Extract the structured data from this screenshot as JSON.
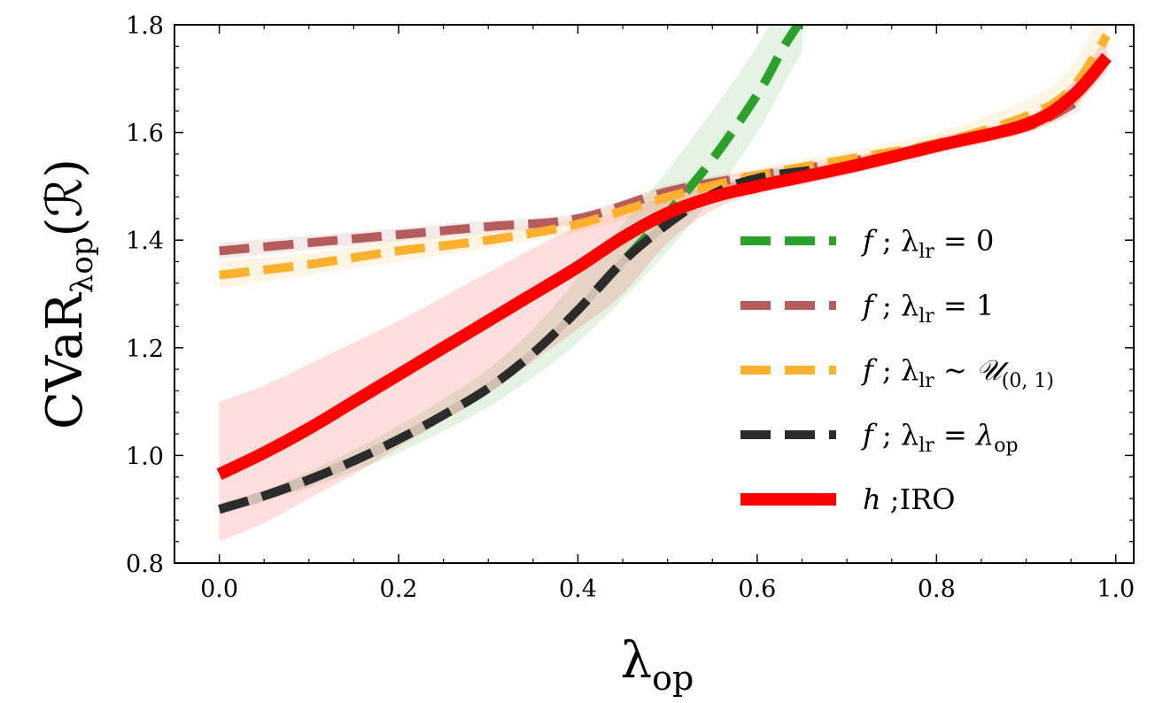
{
  "chart_data": {
    "type": "line",
    "title": "",
    "xlabel": "λop",
    "ylabel": "CVaRλop(ℛ)",
    "xlim": [
      -0.05,
      1.02
    ],
    "ylim": [
      0.8,
      1.8
    ],
    "xticks": [
      0.0,
      0.2,
      0.4,
      0.6,
      0.8,
      1.0
    ],
    "xtick_labels": [
      "0.0",
      "0.2",
      "0.4",
      "0.6",
      "0.8",
      "1.0"
    ],
    "yticks": [
      0.8,
      1.0,
      1.2,
      1.4,
      1.6,
      1.8
    ],
    "ytick_labels": [
      "0.8",
      "1.0",
      "1.2",
      "1.4",
      "1.6",
      "1.8"
    ],
    "grid": false,
    "legend_position": "center-right",
    "series": [
      {
        "name": "f ; λlr = 0",
        "legend": {
          "main": "f",
          "sep": " ; ",
          "sym": "λ",
          "sub": "lr",
          "rel": " = 0",
          "extra": ""
        },
        "color": "#2ca02c",
        "style": "dashed",
        "width": 10,
        "x": [
          0.0,
          0.05,
          0.1,
          0.15,
          0.2,
          0.25,
          0.3,
          0.35,
          0.4,
          0.45,
          0.5,
          0.55,
          0.6,
          0.63,
          0.65
        ],
        "y": [
          0.9,
          0.925,
          0.955,
          0.99,
          1.03,
          1.075,
          1.125,
          1.19,
          1.27,
          1.36,
          1.45,
          1.55,
          1.67,
          1.76,
          1.81
        ],
        "band_lower": [
          0.89,
          0.915,
          0.94,
          0.97,
          1.005,
          1.045,
          1.09,
          1.145,
          1.21,
          1.29,
          1.38,
          1.48,
          1.6,
          1.69,
          1.75
        ],
        "band_upper": [
          0.91,
          0.935,
          0.97,
          1.01,
          1.055,
          1.105,
          1.16,
          1.235,
          1.33,
          1.43,
          1.53,
          1.64,
          1.76,
          1.85,
          1.9
        ]
      },
      {
        "name": "f ; λlr = 1",
        "legend": {
          "main": "f",
          "sep": " ; ",
          "sym": "λ",
          "sub": "lr",
          "rel": " = 1",
          "extra": ""
        },
        "color": "#b55d5d",
        "style": "dashed",
        "width": 10,
        "x": [
          0.0,
          0.1,
          0.2,
          0.3,
          0.4,
          0.5,
          0.6,
          0.7,
          0.8,
          0.9,
          0.96
        ],
        "y": [
          1.38,
          1.395,
          1.41,
          1.425,
          1.44,
          1.49,
          1.52,
          1.545,
          1.575,
          1.61,
          1.66
        ],
        "band_lower": [
          1.365,
          1.382,
          1.398,
          1.413,
          1.43,
          1.478,
          1.51,
          1.535,
          1.565,
          1.6,
          1.64
        ],
        "band_upper": [
          1.395,
          1.408,
          1.422,
          1.437,
          1.45,
          1.502,
          1.53,
          1.555,
          1.585,
          1.62,
          1.68
        ]
      },
      {
        "name": "f ; λlr ~ 𝒰(0, 1)",
        "legend": {
          "main": "f",
          "sep": " ; ",
          "sym": "λ",
          "sub": "lr",
          "rel": " ~ ",
          "extra": "𝒰",
          "extra_sub": "(0, 1)"
        },
        "color": "#ffb02e",
        "style": "dashed",
        "width": 10,
        "x": [
          0.0,
          0.1,
          0.2,
          0.3,
          0.4,
          0.5,
          0.6,
          0.7,
          0.8,
          0.9,
          0.95,
          0.99
        ],
        "y": [
          1.335,
          1.355,
          1.38,
          1.4,
          1.43,
          1.48,
          1.52,
          1.55,
          1.58,
          1.63,
          1.68,
          1.78
        ],
        "band_lower": [
          1.31,
          1.335,
          1.36,
          1.385,
          1.415,
          1.46,
          1.505,
          1.535,
          1.565,
          1.6,
          1.64,
          1.72
        ],
        "band_upper": [
          1.36,
          1.375,
          1.4,
          1.415,
          1.445,
          1.5,
          1.535,
          1.565,
          1.6,
          1.66,
          1.72,
          1.85
        ]
      },
      {
        "name": "f ; λlr = λop",
        "legend": {
          "main": "f",
          "sep": " ; ",
          "sym": "λ",
          "sub": "lr",
          "rel": " = ",
          "extra": "λ",
          "extra_sub": "op"
        },
        "color": "#2b2b2b",
        "style": "dashed",
        "width": 10,
        "x": [
          0.0,
          0.05,
          0.1,
          0.15,
          0.2,
          0.25,
          0.3,
          0.35,
          0.4,
          0.45,
          0.5,
          0.55,
          0.6,
          0.66
        ],
        "y": [
          0.9,
          0.925,
          0.955,
          0.99,
          1.03,
          1.075,
          1.125,
          1.19,
          1.27,
          1.36,
          1.43,
          1.485,
          1.515,
          1.53
        ],
        "band_lower": [
          0.89,
          0.915,
          0.945,
          0.98,
          1.02,
          1.065,
          1.115,
          1.18,
          1.26,
          1.35,
          1.42,
          1.475,
          1.505,
          1.52
        ],
        "band_upper": [
          0.91,
          0.935,
          0.965,
          1.0,
          1.04,
          1.085,
          1.135,
          1.2,
          1.28,
          1.37,
          1.44,
          1.495,
          1.525,
          1.54
        ]
      },
      {
        "name": "h ;IRO",
        "legend": {
          "main": "h",
          "sep": " ;",
          "sym": "",
          "sub": "",
          "rel": "IRO",
          "extra": ""
        },
        "color": "#ff0000",
        "style": "solid",
        "width": 14,
        "x": [
          0.0,
          0.05,
          0.1,
          0.15,
          0.2,
          0.25,
          0.3,
          0.35,
          0.4,
          0.45,
          0.5,
          0.55,
          0.6,
          0.7,
          0.8,
          0.9,
          0.95,
          0.99
        ],
        "y": [
          0.965,
          1.005,
          1.05,
          1.1,
          1.15,
          1.2,
          1.25,
          1.3,
          1.35,
          1.405,
          1.45,
          1.48,
          1.5,
          1.535,
          1.575,
          1.615,
          1.665,
          1.74
        ],
        "band_lower": [
          0.84,
          0.875,
          0.92,
          0.965,
          1.015,
          1.065,
          1.115,
          1.175,
          1.235,
          1.3,
          1.395,
          1.455,
          1.485,
          1.52,
          1.56,
          1.6,
          1.645,
          1.71
        ],
        "band_upper": [
          1.1,
          1.13,
          1.17,
          1.21,
          1.25,
          1.295,
          1.34,
          1.385,
          1.425,
          1.455,
          1.48,
          1.5,
          1.515,
          1.55,
          1.59,
          1.63,
          1.69,
          1.78
        ]
      }
    ]
  }
}
